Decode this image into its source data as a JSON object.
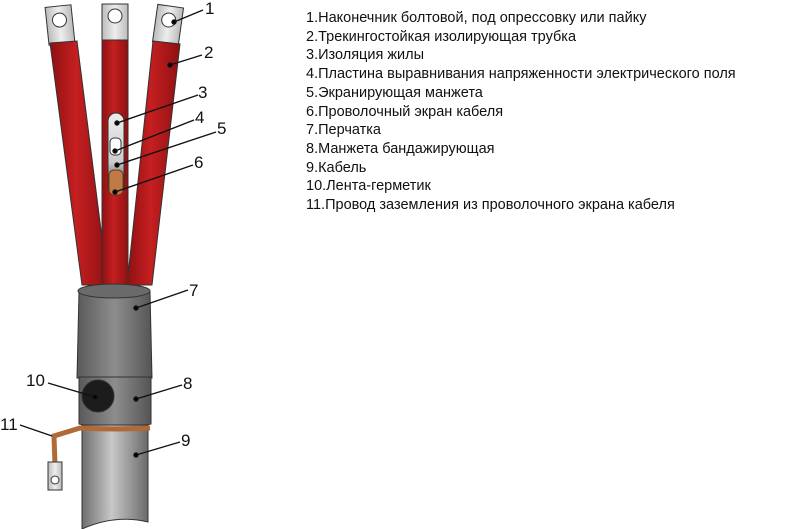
{
  "callouts": [
    "1",
    "2",
    "3",
    "4",
    "5",
    "6",
    "7",
    "8",
    "9",
    "10",
    "11"
  ],
  "legend": [
    "1.Наконечник болтовой, под опрессовку или пайку",
    "2.Трекингостойкая изолирующая трубка",
    "3.Изоляция жилы",
    "4.Пластина выравнивания напряженности электрического поля",
    "5.Экранирующая манжета",
    "6.Проволочный экран кабеля",
    "7.Перчатка",
    "8.Манжета бандажирующая",
    "9.Кабель",
    "10.Лента-герметик",
    "11.Провод заземления из проволочного экрана кабеля"
  ],
  "colors": {
    "tube": "#b8181a",
    "sleeve": "#7a7a7a",
    "cable": "#9a9a9a",
    "copper": "#c07a45",
    "lug": "#d8d8d8"
  }
}
